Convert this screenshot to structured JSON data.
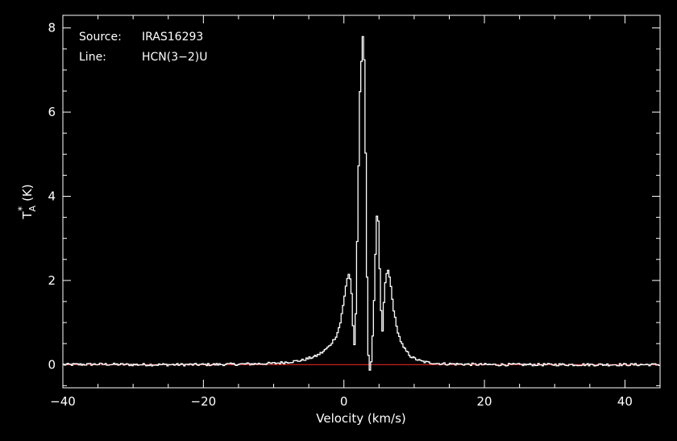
{
  "annotations": {
    "source_label": "Source:",
    "source_value": "IRAS16293",
    "line_label": "Line:",
    "line_value": "HCN(3−2)U"
  },
  "colors": {
    "background": "#000000",
    "axes": "#ffffff",
    "spectrum": "#ffffff",
    "baseline": "#ff2a2a"
  },
  "chart_data": {
    "type": "line",
    "title": "",
    "xlabel": "Velocity (km/s)",
    "ylabel_main": "T",
    "ylabel_sub": "A",
    "ylabel_sup": "*",
    "ylabel_unit": "(K)",
    "xlim": [
      -40,
      45
    ],
    "ylim": [
      -0.55,
      8.3
    ],
    "x_ticks": [
      -40,
      -20,
      0,
      20,
      40
    ],
    "x_tick_labels": [
      "−40",
      "−20",
      "0",
      "20",
      "40"
    ],
    "y_ticks": [
      0,
      2,
      4,
      6,
      8
    ],
    "y_tick_labels": [
      "0",
      "2",
      "4",
      "6",
      "8"
    ],
    "grid": false,
    "series": [
      {
        "style": "histogram",
        "x": [
          -40,
          -35,
          -30,
          -25,
          -20,
          -15,
          -10,
          -8,
          -6,
          -5,
          -4,
          -3,
          -2,
          -1,
          -0.5,
          0,
          0.4,
          0.8,
          1.1,
          1.3,
          1.5,
          1.7,
          2.0,
          2.3,
          2.6,
          2.8,
          3.0,
          3.2,
          3.4,
          3.6,
          3.8,
          4.0,
          4.3,
          4.6,
          4.8,
          5.0,
          5.2,
          5.5,
          5.8,
          6.2,
          6.6,
          7.0,
          7.5,
          8,
          8.5,
          9,
          9.5,
          10,
          11,
          12,
          14,
          17,
          20,
          25,
          30,
          35,
          40,
          45
        ],
        "y": [
          0.0,
          0.01,
          0.0,
          0.0,
          0.0,
          0.01,
          0.03,
          0.06,
          0.1,
          0.15,
          0.2,
          0.3,
          0.45,
          0.7,
          1.0,
          1.5,
          2.0,
          2.2,
          1.7,
          0.9,
          0.45,
          1.2,
          3.8,
          6.5,
          7.6,
          8.0,
          6.5,
          3.5,
          0.6,
          -0.1,
          -0.15,
          0.3,
          1.5,
          3.2,
          3.8,
          3.0,
          1.5,
          0.8,
          1.8,
          2.3,
          2.0,
          1.4,
          0.9,
          0.6,
          0.4,
          0.3,
          0.2,
          0.15,
          0.08,
          0.05,
          0.02,
          0.01,
          0.0,
          0.0,
          0.0,
          0.0,
          0.0,
          0.0
        ]
      }
    ],
    "baseline_y": 0
  }
}
